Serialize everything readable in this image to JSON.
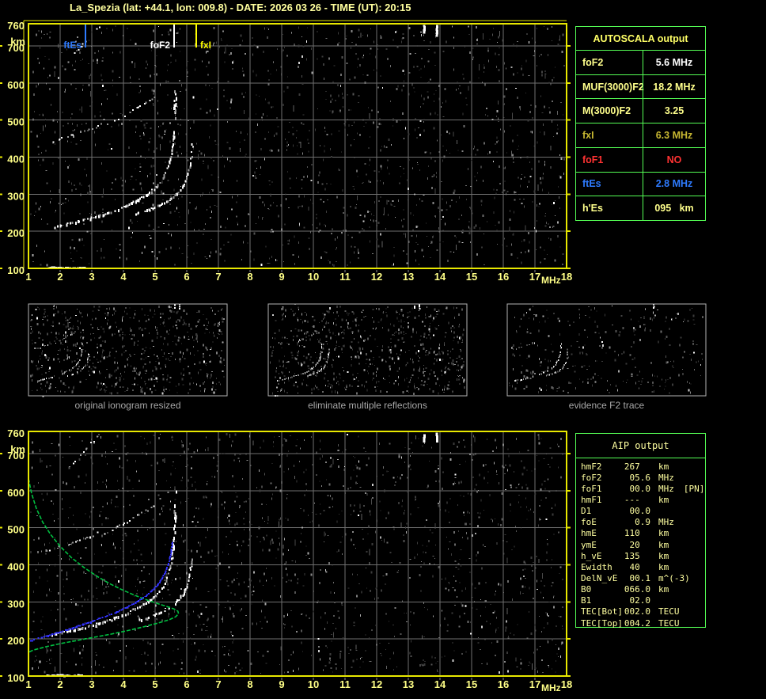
{
  "title": "La_Spezia (lat: +44.1, lon: 009.8) - DATE: 2026 03 26 - TIME (UT): 20:15",
  "colors": {
    "pale_yellow": "#ffff8c",
    "axis_yellow": "#ffff87",
    "bright_yellow": "#ffff00",
    "border_yellow": "#e8e800",
    "table_green": "#55ff55",
    "grid_gray": "#6f6f6f",
    "caption_gray": "#a8a8a8",
    "blue": "#2e7bff",
    "red": "#ff3232",
    "gold": "#c8b832",
    "white": "#ffffff",
    "trace_blue": "#3333ff",
    "profile_green": "#00c040"
  },
  "autoscala": {
    "header": "AUTOSCALA output",
    "rows": [
      {
        "label": "foF2",
        "value": "5.6 MHz",
        "label_color": "pale_yellow",
        "value_color": "white"
      },
      {
        "label": "MUF(3000)F2",
        "value": "18.2 MHz",
        "label_color": "pale_yellow",
        "value_color": "pale_yellow"
      },
      {
        "label": "M(3000)F2",
        "value": "3.25",
        "label_color": "pale_yellow",
        "value_color": "pale_yellow"
      },
      {
        "label": "fxI",
        "value": "6.3 MHz",
        "label_color": "gold",
        "value_color": "gold"
      },
      {
        "label": "foF1",
        "value": "NO",
        "label_color": "red",
        "value_color": "red"
      },
      {
        "label": "ftEs",
        "value": "2.8 MHz",
        "label_color": "blue",
        "value_color": "blue"
      },
      {
        "label": "h'Es",
        "value": "095   km",
        "label_color": "pale_yellow",
        "value_color": "pale_yellow"
      }
    ]
  },
  "aip": {
    "header": "AIP output",
    "rows": [
      {
        "label": "hmF2",
        "value": "267  ",
        "unit": "km",
        "note": ""
      },
      {
        "label": "foF2",
        "value": "05.6",
        "unit": "MHz",
        "note": ""
      },
      {
        "label": "foF1",
        "value": "00.0",
        "unit": "MHz",
        "note": "[PN]"
      },
      {
        "label": "hmF1",
        "value": "---  ",
        "unit": "km",
        "note": ""
      },
      {
        "label": "D1",
        "value": "00.0",
        "unit": "",
        "note": ""
      },
      {
        "label": "foE",
        "value": "0.9",
        "unit": "MHz",
        "note": ""
      },
      {
        "label": "hmE",
        "value": "110  ",
        "unit": "km",
        "note": ""
      },
      {
        "label": "ymE",
        "value": "20  ",
        "unit": "km",
        "note": ""
      },
      {
        "label": "h_vE",
        "value": "135  ",
        "unit": "km",
        "note": ""
      },
      {
        "label": "Ewidth",
        "value": "40  ",
        "unit": "km",
        "note": ""
      },
      {
        "label": "DelN_vE",
        "value": "00.1",
        "unit": "m^(-3)",
        "note": ""
      },
      {
        "label": "B0",
        "value": "066.0",
        "unit": "km",
        "note": ""
      },
      {
        "label": "B1",
        "value": "02.0",
        "unit": "",
        "note": ""
      },
      {
        "label": "TEC[Bot]",
        "value": "002.0",
        "unit": "TECU",
        "note": ""
      },
      {
        "label": "TEC[Top]",
        "value": "004.2",
        "unit": "TECU",
        "note": ""
      }
    ]
  },
  "thumbnails": [
    {
      "caption": "original ionogram resized",
      "traces_shown": [
        "f2_o",
        "f2_o_asym",
        "f2_x",
        "second_hop_a",
        "second_hop_b",
        "third_hop",
        "es_layer",
        "es_layer_weak",
        "noise_cluster_1",
        "noise_cluster_2"
      ],
      "noise": "dense"
    },
    {
      "caption": "eliminate multiple reflections",
      "traces_shown": [
        "f2_o",
        "f2_x",
        "second_hop_b",
        "third_hop",
        "es_layer",
        "noise_cluster_1",
        "noise_cluster_2"
      ],
      "noise": "dense"
    },
    {
      "caption": "evidence F2 trace",
      "traces_shown": [
        "f2_o",
        "f2_x",
        "second_hop_a",
        "third_hop",
        "es_layer_weak",
        "noise_cluster_1"
      ],
      "noise": "sparse"
    }
  ],
  "chart_data": [
    {
      "id": "top_ionogram",
      "type": "scatter",
      "title": "",
      "xlabel": "MHz",
      "ylabel": "km",
      "xlim": [
        1,
        18
      ],
      "ylim": [
        100,
        760
      ],
      "xticks": [
        1,
        2,
        3,
        4,
        5,
        6,
        7,
        8,
        9,
        10,
        11,
        12,
        13,
        14,
        15,
        16,
        17,
        18
      ],
      "yticks": [
        100,
        200,
        300,
        400,
        500,
        600,
        700,
        760
      ],
      "grid": true,
      "markers": [
        {
          "label": "ftEs",
          "freq_mhz": 2.8,
          "color_key": "blue"
        },
        {
          "label": "foF2",
          "freq_mhz": 5.6,
          "color_key": "white"
        },
        {
          "label": "fxI",
          "freq_mhz": 6.3,
          "color_key": "bright_yellow"
        }
      ],
      "traces": {
        "f2_o": {
          "style": "bright",
          "points": [
            [
              1.75,
              213
            ],
            [
              2.2,
              222
            ],
            [
              2.7,
              232
            ],
            [
              3.2,
              244
            ],
            [
              3.7,
              258
            ],
            [
              4.1,
              272
            ],
            [
              4.45,
              287
            ],
            [
              4.75,
              303
            ],
            [
              5.0,
              320
            ],
            [
              5.2,
              340
            ],
            [
              5.35,
              363
            ],
            [
              5.45,
              390
            ],
            [
              5.52,
              420
            ],
            [
              5.56,
              452
            ],
            [
              5.58,
              478
            ]
          ]
        },
        "f2_o_asym": {
          "style": "asym",
          "points": [
            [
              5.59,
              490
            ],
            [
              5.61,
              535
            ],
            [
              5.62,
              575
            ],
            [
              5.63,
              615
            ]
          ]
        },
        "f2_x": {
          "style": "bright2",
          "points": [
            [
              4.35,
              250
            ],
            [
              4.8,
              261
            ],
            [
              5.15,
              273
            ],
            [
              5.45,
              288
            ],
            [
              5.7,
              305
            ],
            [
              5.88,
              325
            ],
            [
              6.0,
              348
            ],
            [
              6.08,
              375
            ],
            [
              6.13,
              405
            ],
            [
              6.16,
              435
            ]
          ]
        },
        "second_hop_a": {
          "style": "band",
          "points": [
            [
              1.5,
              440
            ],
            [
              1.95,
              450
            ],
            [
              2.4,
              462
            ],
            [
              2.85,
              475
            ],
            [
              3.25,
              490
            ]
          ]
        },
        "second_hop_b": {
          "style": "band",
          "points": [
            [
              3.3,
              480
            ],
            [
              3.75,
              502
            ],
            [
              4.2,
              524
            ],
            [
              4.65,
              547
            ],
            [
              5.0,
              565
            ]
          ]
        },
        "third_hop": {
          "style": "dots",
          "points": [
            [
              2.15,
              652
            ],
            [
              2.4,
              676
            ],
            [
              2.65,
              700
            ],
            [
              2.9,
              724
            ],
            [
              3.15,
              748
            ],
            [
              3.28,
              760
            ]
          ]
        },
        "es_layer": {
          "style": "dash",
          "points": [
            [
              1.55,
              104
            ],
            [
              2.75,
              104
            ]
          ]
        },
        "es_layer_weak": {
          "style": "weak",
          "points": [
            [
              1.05,
              101
            ],
            [
              1.5,
              101
            ]
          ]
        },
        "noise_cluster_1": {
          "style": "cluster",
          "points": [
            [
              13.47,
              757
            ],
            [
              13.47,
              737
            ]
          ]
        },
        "noise_cluster_2": {
          "style": "cluster",
          "points": [
            [
              13.87,
              757
            ],
            [
              13.87,
              732
            ]
          ]
        }
      }
    },
    {
      "id": "bottom_ionogram",
      "type": "scatter",
      "title": "",
      "xlabel": "MHz",
      "ylabel": "km",
      "xlim": [
        1,
        18
      ],
      "ylim": [
        100,
        760
      ],
      "xticks": [
        1,
        2,
        3,
        4,
        5,
        6,
        7,
        8,
        9,
        10,
        11,
        12,
        13,
        14,
        15,
        16,
        17,
        18
      ],
      "yticks": [
        100,
        200,
        300,
        400,
        500,
        600,
        700,
        760
      ],
      "grid": true,
      "traces_same_as": "top_ionogram",
      "fitted_trace": {
        "color_key": "trace_blue",
        "points": [
          [
            1.05,
            197
          ],
          [
            1.4,
            206
          ],
          [
            1.8,
            216
          ],
          [
            2.2,
            227
          ],
          [
            2.6,
            238
          ],
          [
            3.0,
            250
          ],
          [
            3.4,
            262
          ],
          [
            3.75,
            274
          ],
          [
            4.1,
            288
          ],
          [
            4.4,
            302
          ],
          [
            4.65,
            316
          ],
          [
            4.85,
            330
          ],
          [
            5.05,
            347
          ],
          [
            5.2,
            365
          ],
          [
            5.32,
            385
          ],
          [
            5.4,
            405
          ],
          [
            5.46,
            425
          ],
          [
            5.5,
            445
          ],
          [
            5.53,
            462
          ]
        ]
      },
      "density_profile": {
        "color_key": "profile_green",
        "points": [
          [
            1.0,
            633
          ],
          [
            1.1,
            592
          ],
          [
            1.25,
            552
          ],
          [
            1.45,
            515
          ],
          [
            1.7,
            482
          ],
          [
            2.0,
            450
          ],
          [
            2.35,
            420
          ],
          [
            2.75,
            393
          ],
          [
            3.15,
            370
          ],
          [
            3.55,
            350
          ],
          [
            3.95,
            333
          ],
          [
            4.35,
            318
          ],
          [
            4.75,
            305
          ],
          [
            5.1,
            295
          ],
          [
            5.4,
            287
          ],
          [
            5.6,
            281
          ],
          [
            5.72,
            275
          ],
          [
            5.74,
            268
          ],
          [
            5.65,
            260
          ],
          [
            5.45,
            252
          ],
          [
            5.1,
            243
          ],
          [
            4.6,
            232
          ],
          [
            4.1,
            222
          ],
          [
            3.6,
            213
          ],
          [
            3.1,
            205
          ],
          [
            2.6,
            197
          ],
          [
            2.1,
            189
          ],
          [
            1.6,
            180
          ],
          [
            1.15,
            170
          ],
          [
            1.0,
            164
          ]
        ]
      }
    }
  ]
}
